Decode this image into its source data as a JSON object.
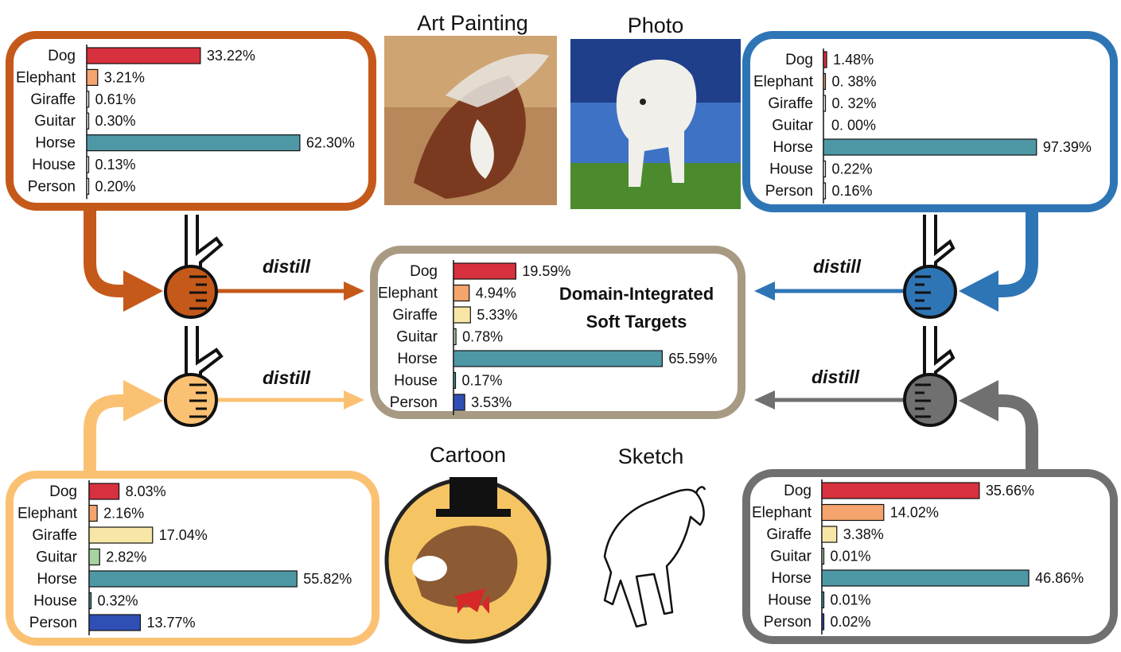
{
  "colors": {
    "art": "#c5591a",
    "photo": "#2e75b6",
    "cartoon": "#fbc173",
    "sketch": "#707070",
    "center": "#a89a82",
    "categories": [
      "#d7303e",
      "#f4a46c",
      "#f8e6a6",
      "#a8d3a0",
      "#4e98a6",
      "#4e98a6",
      "#2f4fb5"
    ]
  },
  "categories": [
    "Dog",
    "Elephant",
    "Giraffe",
    "Guitar",
    "Horse",
    "House",
    "Person"
  ],
  "domains": {
    "art": {
      "title": "Art Painting",
      "image_icon": "horse-painting-icon"
    },
    "photo": {
      "title": "Photo",
      "image_icon": "horse-photo-icon"
    },
    "cartoon": {
      "title": "Cartoon",
      "image_icon": "cartoon-horse-icon"
    },
    "sketch": {
      "title": "Sketch",
      "image_icon": "sketch-horse-icon"
    }
  },
  "center": {
    "label_line1": "Domain-Integrated",
    "label_line2": "Soft Targets"
  },
  "arrows": {
    "distill_label": "distill"
  },
  "chart_data": [
    {
      "id": "art",
      "type": "bar",
      "orientation": "horizontal",
      "categories": [
        "Dog",
        "Elephant",
        "Giraffe",
        "Guitar",
        "Horse",
        "House",
        "Person"
      ],
      "values": [
        33.22,
        3.21,
        0.61,
        0.3,
        62.3,
        0.13,
        0.2
      ],
      "labels": [
        "33.22%",
        "3.21%",
        "0.61%",
        "0.30%",
        "62.30%",
        "0.13%",
        "0.20%"
      ]
    },
    {
      "id": "photo",
      "type": "bar",
      "orientation": "horizontal",
      "categories": [
        "Dog",
        "Elephant",
        "Giraffe",
        "Guitar",
        "Horse",
        "House",
        "Person"
      ],
      "values": [
        1.48,
        0.38,
        0.32,
        0.0,
        97.39,
        0.22,
        0.16
      ],
      "labels": [
        "1.48%",
        "0. 38%",
        "0. 32%",
        "0. 00%",
        "97.39%",
        "0.22%",
        "0.16%"
      ]
    },
    {
      "id": "center",
      "type": "bar",
      "orientation": "horizontal",
      "categories": [
        "Dog",
        "Elephant",
        "Giraffe",
        "Guitar",
        "Horse",
        "House",
        "Person"
      ],
      "values": [
        19.59,
        4.94,
        5.33,
        0.78,
        65.59,
        0.17,
        3.53
      ],
      "labels": [
        "19.59%",
        "4.94%",
        "5.33%",
        "0.78%",
        "65.59%",
        "0.17%",
        "3.53%"
      ]
    },
    {
      "id": "cartoon",
      "type": "bar",
      "orientation": "horizontal",
      "categories": [
        "Dog",
        "Elephant",
        "Giraffe",
        "Guitar",
        "Horse",
        "House",
        "Person"
      ],
      "values": [
        8.03,
        2.16,
        17.04,
        2.82,
        55.82,
        0.32,
        13.77
      ],
      "labels": [
        "8.03%",
        "2.16%",
        "17.04%",
        "2.82%",
        "55.82%",
        "0.32%",
        "13.77%"
      ]
    },
    {
      "id": "sketch",
      "type": "bar",
      "orientation": "horizontal",
      "categories": [
        "Dog",
        "Elephant",
        "Giraffe",
        "Guitar",
        "Horse",
        "House",
        "Person"
      ],
      "values": [
        35.66,
        14.02,
        3.38,
        0.01,
        46.86,
        0.01,
        0.02
      ],
      "labels": [
        "35.66%",
        "14.02%",
        "3.38%",
        "0.01%",
        "46.86%",
        "0.01%",
        "0.02%"
      ]
    }
  ]
}
